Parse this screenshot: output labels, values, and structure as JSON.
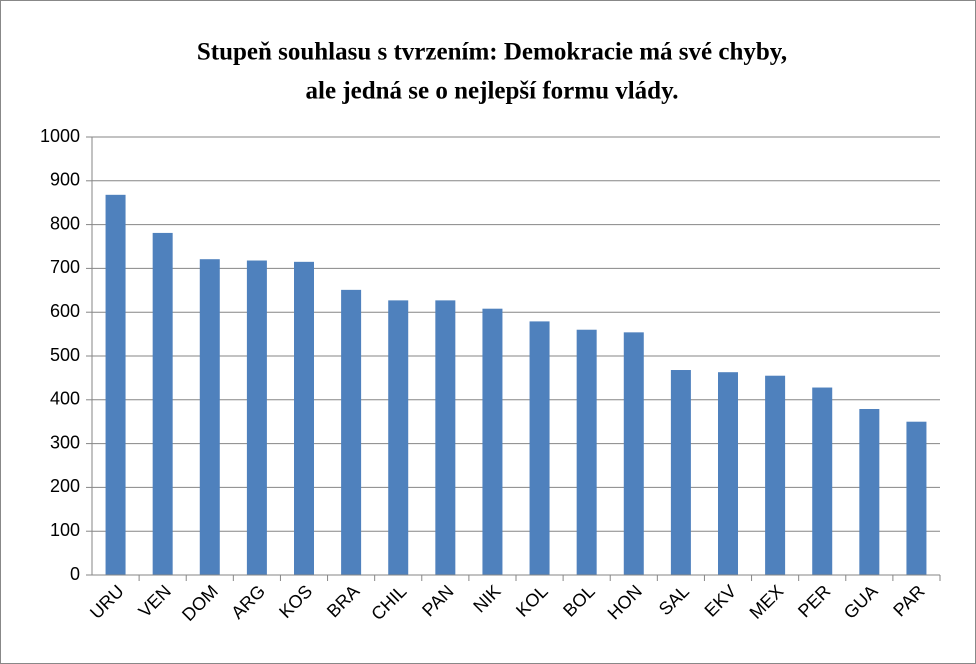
{
  "chart_data": {
    "type": "bar",
    "title": [
      "Stupeň souhlasu s tvrzením: Demokracie má své chyby,",
      "ale jedná se o nejlepší formu vlády."
    ],
    "categories": [
      "URU",
      "VEN",
      "DOM",
      "ARG",
      "KOS",
      "BRA",
      "CHIL",
      "PAN",
      "NIK",
      "KOL",
      "BOL",
      "HON",
      "SAL",
      "EKV",
      "MEX",
      "PER",
      "GUA",
      "PAR"
    ],
    "values": [
      868,
      781,
      721,
      718,
      715,
      651,
      627,
      627,
      608,
      579,
      560,
      554,
      468,
      463,
      455,
      428,
      379,
      350
    ],
    "color": "#4f81bd",
    "ylim": [
      0,
      1000
    ],
    "yticks": [
      0,
      100,
      200,
      300,
      400,
      500,
      600,
      700,
      800,
      900,
      1000
    ],
    "grid": true
  }
}
